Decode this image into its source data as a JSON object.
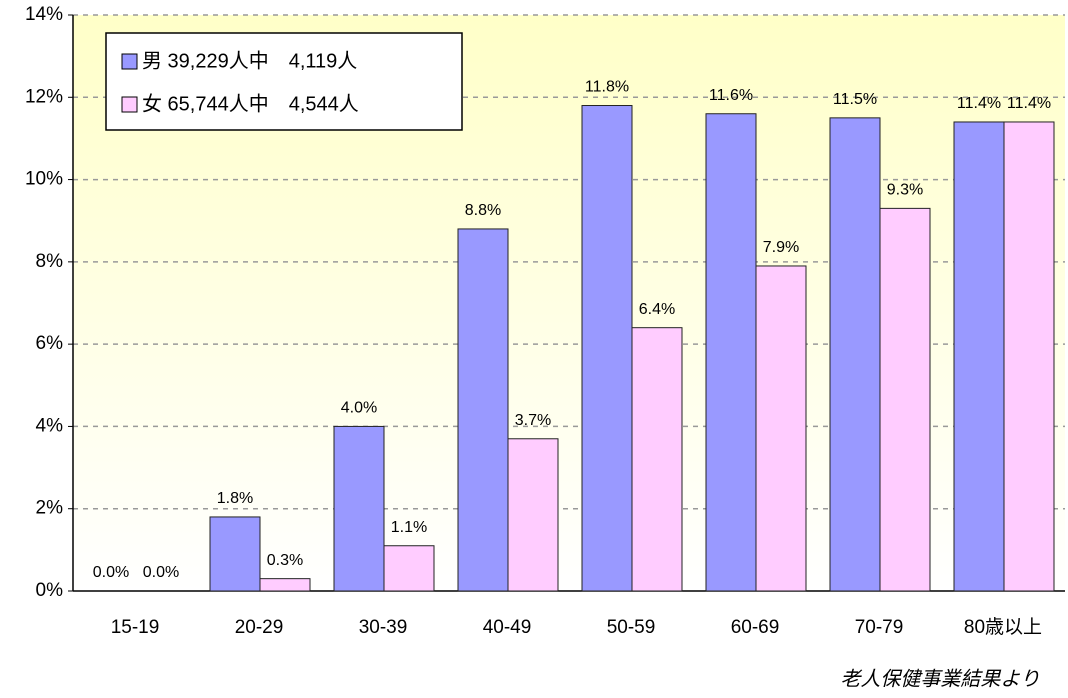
{
  "chart_data": {
    "type": "bar",
    "categories": [
      "15-19",
      "20-29",
      "30-39",
      "40-49",
      "50-59",
      "60-69",
      "70-79",
      "80歳以上"
    ],
    "series": [
      {
        "name": "男 39,229人中　4,119人",
        "color": "#9999ff",
        "values": [
          0.0,
          1.8,
          4.0,
          8.8,
          11.8,
          11.6,
          11.5,
          11.4
        ],
        "value_labels": [
          "0.0%",
          "1.8%",
          "4.0%",
          "8.8%",
          "11.8%",
          "11.6%",
          "11.5%",
          "11.4%"
        ]
      },
      {
        "name": "女 65,744人中　4,544人",
        "color": "#ffccff",
        "values": [
          0.0,
          0.3,
          1.1,
          3.7,
          6.4,
          7.9,
          9.3,
          11.4
        ],
        "value_labels": [
          "0.0%",
          "0.3%",
          "1.1%",
          "3.7%",
          "6.4%",
          "7.9%",
          "9.3%",
          "11.4%"
        ]
      }
    ],
    "ylim": [
      0,
      14
    ],
    "yticks": [
      {
        "value": 0,
        "label": "0%"
      },
      {
        "value": 2,
        "label": "2%"
      },
      {
        "value": 4,
        "label": "4%"
      },
      {
        "value": 6,
        "label": "6%"
      },
      {
        "value": 8,
        "label": "8%"
      },
      {
        "value": 10,
        "label": "10%"
      },
      {
        "value": 12,
        "label": "12%"
      },
      {
        "value": 14,
        "label": "14%"
      }
    ],
    "grid": true,
    "legend": "upper left",
    "annotation": "老人保健事業結果より"
  }
}
